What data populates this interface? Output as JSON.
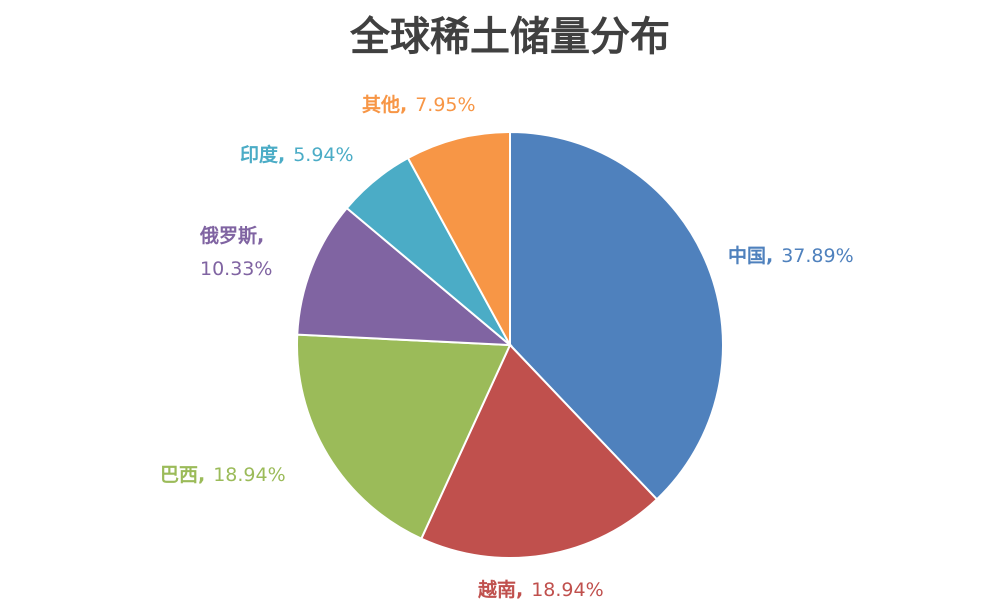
{
  "chart_data": {
    "type": "pie",
    "title": "全球稀土储量分布",
    "categories": [
      "中国,",
      "越南,",
      "巴西,",
      "俄罗斯,",
      "印度,",
      "其他,"
    ],
    "values": [
      37.89,
      18.94,
      18.94,
      10.33,
      5.94,
      7.95
    ],
    "value_labels": [
      "37.89%",
      "18.94%",
      "18.94%",
      "10.33%",
      "5.94%",
      "7.95%"
    ],
    "colors": [
      "#4f81bd",
      "#c0504d",
      "#9bbb59",
      "#8064a2",
      "#4bacc6",
      "#f79646"
    ]
  }
}
